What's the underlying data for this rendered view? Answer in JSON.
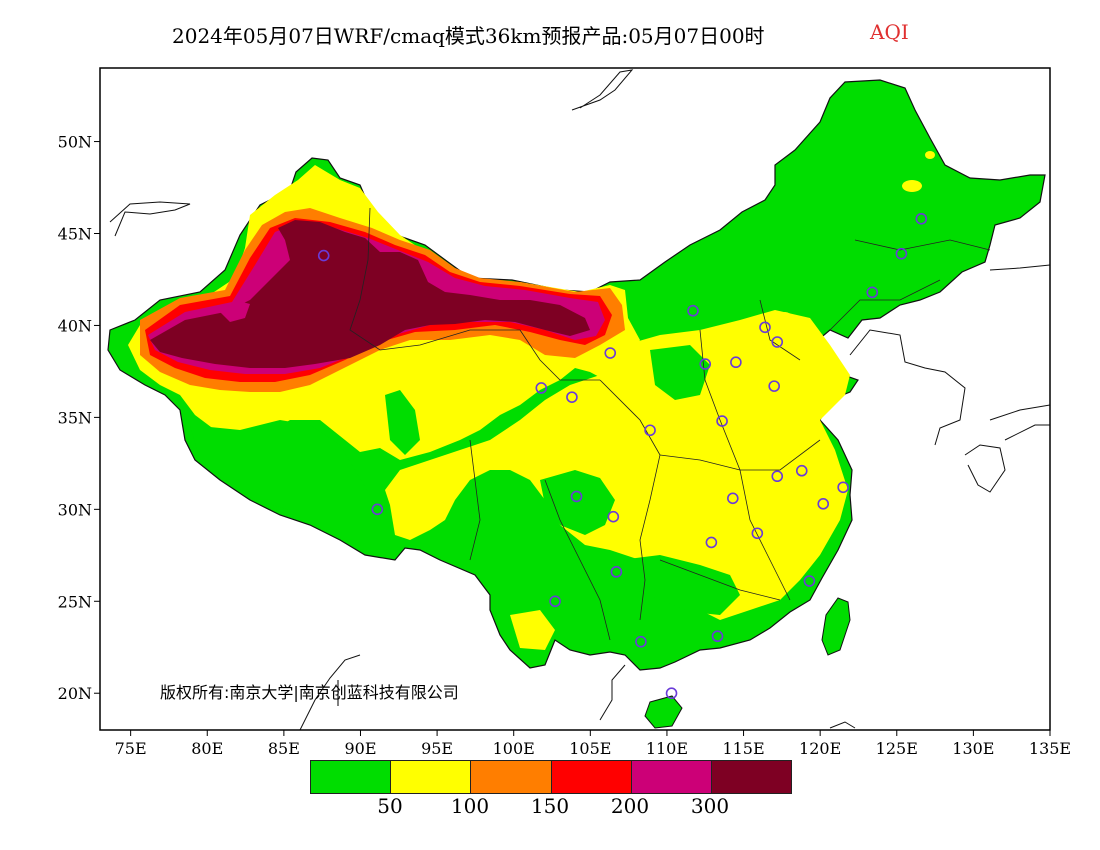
{
  "title": {
    "text": "2024年05月07日WRF/cmaq模式36km预报产品:05月07日00时",
    "variable": "AQI",
    "variable_color": "#e03030"
  },
  "copyright": "版权所有:南京大学|南京创蓝科技有限公司",
  "map": {
    "lon_range": [
      73,
      135
    ],
    "lat_range": [
      18,
      54
    ],
    "x_ticks": [
      "75E",
      "80E",
      "85E",
      "90E",
      "95E",
      "100E",
      "105E",
      "110E",
      "115E",
      "120E",
      "125E",
      "130E",
      "135E"
    ],
    "y_ticks": [
      "20N",
      "25N",
      "30N",
      "35N",
      "40N",
      "45N",
      "50N"
    ]
  },
  "legend": {
    "colors": [
      "#00dd00",
      "#ffff00",
      "#ff7e00",
      "#ff0000",
      "#cc0077",
      "#7e0023"
    ],
    "labels": [
      "50",
      "100",
      "150",
      "200",
      "300"
    ]
  },
  "stations": [
    [
      87.6,
      43.8
    ],
    [
      91.1,
      30.0
    ],
    [
      101.8,
      36.6
    ],
    [
      103.8,
      36.1
    ],
    [
      106.3,
      38.5
    ],
    [
      111.7,
      40.8
    ],
    [
      112.5,
      37.9
    ],
    [
      114.5,
      38.0
    ],
    [
      116.4,
      39.9
    ],
    [
      117.2,
      39.1
    ],
    [
      117.0,
      36.7
    ],
    [
      113.6,
      34.8
    ],
    [
      108.9,
      34.3
    ],
    [
      104.1,
      30.7
    ],
    [
      106.5,
      29.6
    ],
    [
      114.3,
      30.6
    ],
    [
      117.2,
      31.8
    ],
    [
      118.8,
      32.1
    ],
    [
      121.5,
      31.2
    ],
    [
      120.2,
      30.3
    ],
    [
      115.9,
      28.7
    ],
    [
      112.9,
      28.2
    ],
    [
      106.7,
      26.6
    ],
    [
      102.7,
      25.0
    ],
    [
      108.3,
      22.8
    ],
    [
      113.3,
      23.1
    ],
    [
      119.3,
      26.1
    ],
    [
      110.3,
      20.0
    ],
    [
      123.4,
      41.8
    ],
    [
      125.3,
      43.9
    ],
    [
      126.6,
      45.8
    ]
  ]
}
